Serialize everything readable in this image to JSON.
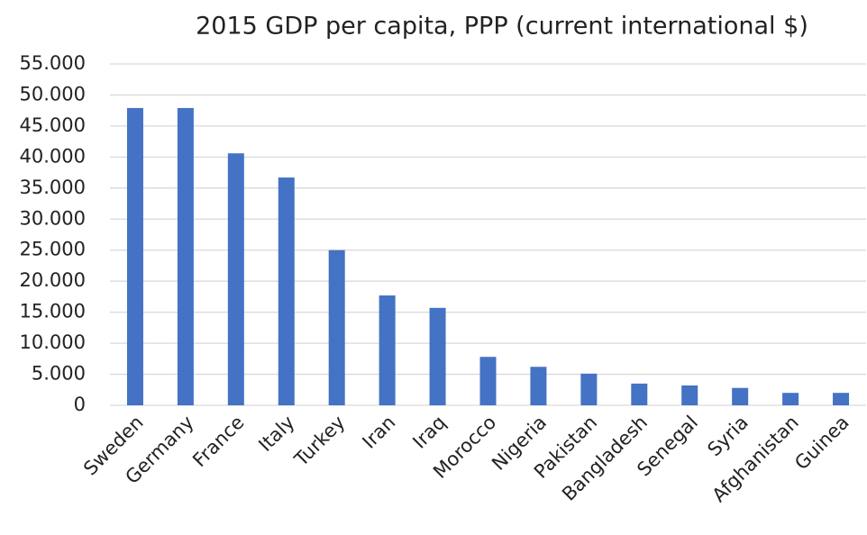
{
  "chart_data": {
    "type": "bar",
    "title": "2015 GDP per capita, PPP (current international $)",
    "categories": [
      "Sweden",
      "Germany",
      "France",
      "Italy",
      "Turkey",
      "Iran",
      "Iraq",
      "Morocco",
      "Nigeria",
      "Pakistan",
      "Bangladesh",
      "Senegal",
      "Syria",
      "Afghanistan",
      "Guinea"
    ],
    "values": [
      47900,
      47900,
      40600,
      36700,
      25000,
      17700,
      15700,
      7800,
      6200,
      5100,
      3500,
      3200,
      2800,
      2000,
      2000
    ],
    "color": "#4472c4",
    "ylim": [
      0,
      55000
    ],
    "yticks": [
      0,
      {
        "value": 5000,
        "label": "5.000"
      },
      {
        "value": 10000,
        "label": "10.000"
      },
      {
        "value": 15000,
        "label": "15.000"
      },
      {
        "value": 20000,
        "label": "20.000"
      },
      {
        "value": 25000,
        "label": "25.000"
      },
      {
        "value": 30000,
        "label": "30.000"
      },
      {
        "value": 35000,
        "label": "35.000"
      },
      {
        "value": 40000,
        "label": "40.000"
      },
      {
        "value": 45000,
        "label": "45.000"
      },
      {
        "value": 50000,
        "label": "50.000"
      },
      {
        "value": 55000,
        "label": "55.000"
      }
    ],
    "grid": true
  }
}
